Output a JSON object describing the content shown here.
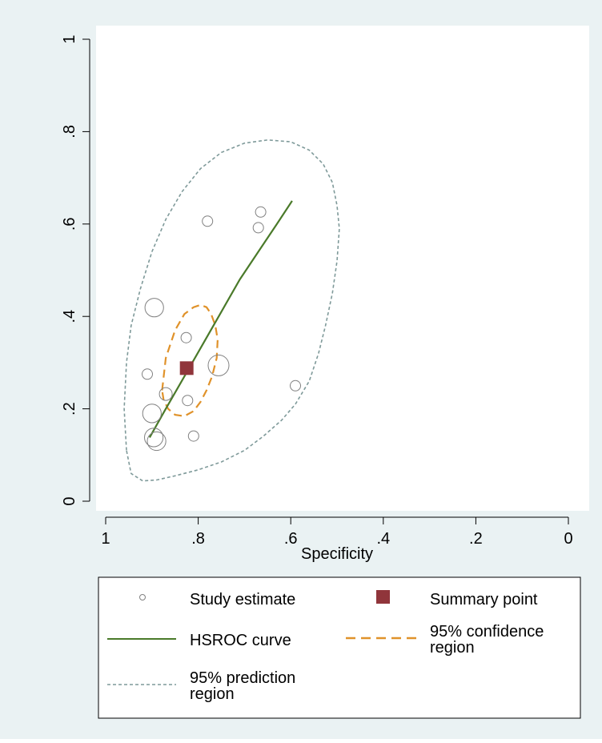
{
  "chart_data": {
    "type": "scatter",
    "title": "",
    "xlabel": "Specificity",
    "ylabel": "",
    "x_reversed": true,
    "xlim": [
      0,
      1
    ],
    "ylim": [
      0,
      1
    ],
    "x_ticks": [
      1,
      0.8,
      0.6,
      0.4,
      0.2,
      0
    ],
    "x_tick_labels": [
      "1",
      ".8",
      ".6",
      ".4",
      ".2",
      "0"
    ],
    "y_ticks": [
      0,
      0.2,
      0.4,
      0.6,
      0.8,
      1
    ],
    "y_tick_labels": [
      "0",
      ".2",
      ".4",
      ".6",
      ".8",
      "1"
    ],
    "grid": false,
    "legend_position": "bottom",
    "colors": {
      "page_background": "#eaf2f3",
      "plot_background": "#ffffff",
      "study": "#808080",
      "summary": "#90353b",
      "hsroc": "#4a7a2a",
      "confidence": "#e0922a",
      "prediction": "#7f9a9a"
    },
    "legend": [
      {
        "id": "study",
        "label": "Study estimate"
      },
      {
        "id": "summary",
        "label": "Summary point"
      },
      {
        "id": "hsroc",
        "label": "HSROC curve"
      },
      {
        "id": "confidence",
        "label": "95% confidence region"
      },
      {
        "id": "prediction",
        "label": "95% prediction region"
      }
    ],
    "series": [
      {
        "id": "study",
        "points": [
          {
            "x": 0.665,
            "y": 0.626,
            "w": 1
          },
          {
            "x": 0.78,
            "y": 0.606,
            "w": 1
          },
          {
            "x": 0.67,
            "y": 0.592,
            "w": 1
          },
          {
            "x": 0.895,
            "y": 0.419,
            "w": 3.2
          },
          {
            "x": 0.826,
            "y": 0.354,
            "w": 1
          },
          {
            "x": 0.756,
            "y": 0.294,
            "w": 4
          },
          {
            "x": 0.91,
            "y": 0.275,
            "w": 1
          },
          {
            "x": 0.59,
            "y": 0.25,
            "w": 1
          },
          {
            "x": 0.87,
            "y": 0.232,
            "w": 1.5
          },
          {
            "x": 0.823,
            "y": 0.218,
            "w": 1
          },
          {
            "x": 0.9,
            "y": 0.19,
            "w": 3.2
          },
          {
            "x": 0.896,
            "y": 0.138,
            "w": 3.2
          },
          {
            "x": 0.89,
            "y": 0.13,
            "w": 3.2
          },
          {
            "x": 0.81,
            "y": 0.141,
            "w": 1
          }
        ]
      },
      {
        "id": "summary",
        "points": [
          {
            "x": 0.825,
            "y": 0.288
          }
        ]
      },
      {
        "id": "hsroc",
        "x": [
          0.905,
          0.87,
          0.83,
          0.79,
          0.75,
          0.71,
          0.67,
          0.63,
          0.597
        ],
        "y": [
          0.138,
          0.2,
          0.27,
          0.34,
          0.41,
          0.48,
          0.54,
          0.6,
          0.65
        ]
      },
      {
        "id": "confidence",
        "x": [
          0.878,
          0.87,
          0.85,
          0.83,
          0.81,
          0.795,
          0.782,
          0.772,
          0.763,
          0.758,
          0.76,
          0.77,
          0.782,
          0.795,
          0.81,
          0.83,
          0.85,
          0.865,
          0.875,
          0.878
        ],
        "y": [
          0.24,
          0.31,
          0.37,
          0.405,
          0.42,
          0.425,
          0.42,
          0.405,
          0.38,
          0.35,
          0.31,
          0.27,
          0.24,
          0.215,
          0.195,
          0.184,
          0.187,
          0.2,
          0.22,
          0.24
        ]
      },
      {
        "id": "prediction",
        "x": [
          0.955,
          0.96,
          0.955,
          0.945,
          0.925,
          0.9,
          0.87,
          0.835,
          0.795,
          0.75,
          0.7,
          0.65,
          0.6,
          0.56,
          0.53,
          0.51,
          0.5,
          0.495,
          0.5,
          0.51,
          0.525,
          0.54,
          0.56,
          0.59,
          0.62,
          0.66,
          0.7,
          0.75,
          0.8,
          0.85,
          0.89,
          0.92,
          0.945,
          0.955
        ],
        "y": [
          0.11,
          0.2,
          0.3,
          0.38,
          0.46,
          0.54,
          0.61,
          0.67,
          0.72,
          0.755,
          0.775,
          0.782,
          0.778,
          0.76,
          0.73,
          0.69,
          0.64,
          0.59,
          0.52,
          0.45,
          0.38,
          0.32,
          0.26,
          0.21,
          0.175,
          0.14,
          0.11,
          0.085,
          0.068,
          0.055,
          0.046,
          0.044,
          0.06,
          0.11
        ]
      }
    ]
  }
}
